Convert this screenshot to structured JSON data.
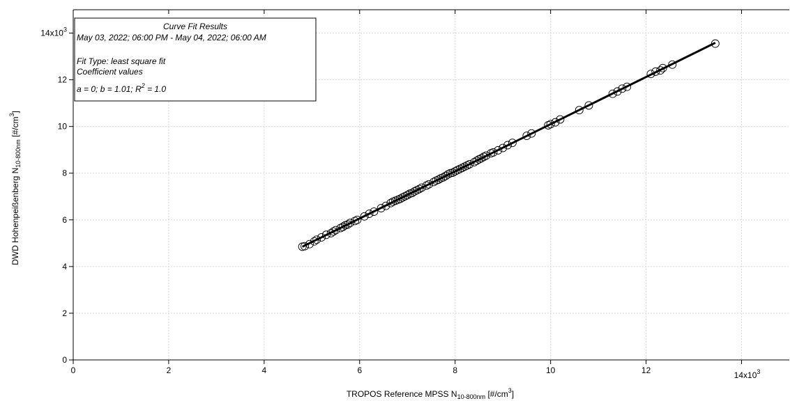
{
  "chart_data": {
    "type": "scatter",
    "xlabel": {
      "prefix": "TROPOS Reference MPSS N",
      "subscript": "10-800nm",
      "units_open": "[#/cm",
      "units_sup": "3",
      "units_close": "]"
    },
    "ylabel": {
      "prefix": "DWD Hohenpeißenberg N",
      "subscript": "10-800nm",
      "units_open": "[#/cm",
      "units_sup": "3",
      "units_close": "]"
    },
    "xlim": [
      0,
      15000
    ],
    "ylim": [
      0,
      15000
    ],
    "x_ticks": [
      0,
      2000,
      4000,
      6000,
      8000,
      10000,
      12000,
      14000
    ],
    "y_ticks": [
      0,
      2000,
      4000,
      6000,
      8000,
      10000,
      12000,
      14000
    ],
    "x_tick_labels": [
      "0",
      "2",
      "4",
      "6",
      "8",
      "10",
      "12",
      "14x10"
    ],
    "y_tick_labels": [
      "0",
      "2",
      "4",
      "6",
      "8",
      "10",
      "12",
      "14x10"
    ],
    "tick_exponent": "3",
    "grid": true,
    "fit_line": {
      "a": 0,
      "b": 1.01,
      "x_range": [
        4800,
        13450
      ]
    },
    "fit_box": {
      "title": "Curve Fit Results",
      "period": "May 03, 2022; 06:00 PM - May 04, 2022; 06:00 AM",
      "fit_type": "Fit Type: least square fit",
      "coeff": "Coefficient values",
      "eq_prefix": "a = 0; b = 1.01; R",
      "eq_sup": "2",
      "eq_suffix": " = 1.0"
    },
    "points": [
      [
        4800,
        4850
      ],
      [
        4850,
        4870
      ],
      [
        4950,
        4960
      ],
      [
        5050,
        5080
      ],
      [
        5100,
        5150
      ],
      [
        5200,
        5250
      ],
      [
        5300,
        5360
      ],
      [
        5400,
        5430
      ],
      [
        5450,
        5500
      ],
      [
        5500,
        5560
      ],
      [
        5600,
        5650
      ],
      [
        5650,
        5700
      ],
      [
        5700,
        5770
      ],
      [
        5750,
        5800
      ],
      [
        5800,
        5870
      ],
      [
        5900,
        5950
      ],
      [
        5950,
        6000
      ],
      [
        6100,
        6150
      ],
      [
        6200,
        6260
      ],
      [
        6300,
        6350
      ],
      [
        6450,
        6500
      ],
      [
        6550,
        6600
      ],
      [
        6650,
        6720
      ],
      [
        6700,
        6780
      ],
      [
        6750,
        6820
      ],
      [
        6800,
        6860
      ],
      [
        6850,
        6900
      ],
      [
        6900,
        6960
      ],
      [
        6950,
        7010
      ],
      [
        7000,
        7060
      ],
      [
        7050,
        7120
      ],
      [
        7100,
        7150
      ],
      [
        7150,
        7220
      ],
      [
        7200,
        7270
      ],
      [
        7250,
        7320
      ],
      [
        7300,
        7380
      ],
      [
        7400,
        7470
      ],
      [
        7450,
        7520
      ],
      [
        7550,
        7620
      ],
      [
        7600,
        7680
      ],
      [
        7650,
        7720
      ],
      [
        7700,
        7780
      ],
      [
        7750,
        7820
      ],
      [
        7800,
        7880
      ],
      [
        7850,
        7950
      ],
      [
        7900,
        8000
      ],
      [
        7950,
        8020
      ],
      [
        8000,
        8080
      ],
      [
        8050,
        8130
      ],
      [
        8100,
        8180
      ],
      [
        8150,
        8230
      ],
      [
        8200,
        8280
      ],
      [
        8250,
        8330
      ],
      [
        8300,
        8380
      ],
      [
        8400,
        8470
      ],
      [
        8450,
        8530
      ],
      [
        8500,
        8590
      ],
      [
        8550,
        8640
      ],
      [
        8600,
        8700
      ],
      [
        8650,
        8750
      ],
      [
        8750,
        8850
      ],
      [
        8800,
        8890
      ],
      [
        8900,
        8980
      ],
      [
        9000,
        9080
      ],
      [
        9100,
        9200
      ],
      [
        9200,
        9300
      ],
      [
        9500,
        9600
      ],
      [
        9600,
        9700
      ],
      [
        9950,
        10050
      ],
      [
        10000,
        10100
      ],
      [
        10100,
        10180
      ],
      [
        10200,
        10300
      ],
      [
        10600,
        10700
      ],
      [
        10800,
        10900
      ],
      [
        11300,
        11400
      ],
      [
        11400,
        11500
      ],
      [
        11500,
        11620
      ],
      [
        11600,
        11700
      ],
      [
        12100,
        12250
      ],
      [
        12200,
        12350
      ],
      [
        12300,
        12400
      ],
      [
        12350,
        12500
      ],
      [
        12550,
        12650
      ],
      [
        13450,
        13550
      ]
    ]
  }
}
